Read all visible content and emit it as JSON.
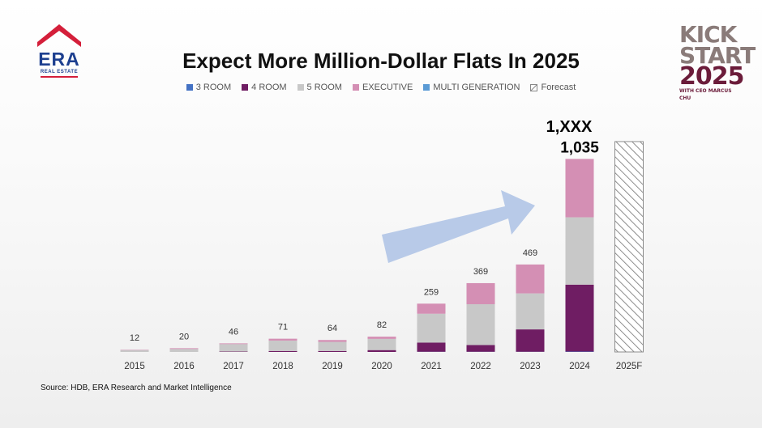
{
  "logo": {
    "name": "ERA",
    "sub": "REAL ESTATE"
  },
  "badge": {
    "line1": "KICK",
    "line2": "START",
    "line3": "2025",
    "line4": "WITH CEO MARCUS CHU"
  },
  "colors": {
    "3 ROOM": "#4472c4",
    "4 ROOM": "#6f1d63",
    "5 ROOM": "#c8c8c8",
    "EXECUTIVE": "#d48fb4",
    "MULTI GENERATION": "#5b9bd5",
    "arrow": "#b4c7e7"
  },
  "chart_data": {
    "type": "bar",
    "title": "Expect More Million-Dollar Flats In 2025",
    "categories": [
      "2015",
      "2016",
      "2017",
      "2018",
      "2019",
      "2020",
      "2021",
      "2022",
      "2023",
      "2024"
    ],
    "series": [
      {
        "name": "3 ROOM",
        "values": [
          0,
          0,
          0,
          0,
          0,
          0,
          1,
          1,
          1,
          2
        ]
      },
      {
        "name": "4 ROOM",
        "values": [
          0,
          0,
          2,
          5,
          5,
          10,
          49,
          36,
          120,
          359
        ]
      },
      {
        "name": "5 ROOM",
        "values": [
          10,
          16,
          40,
          56,
          49,
          60,
          155,
          219,
          193,
          361
        ]
      },
      {
        "name": "EXECUTIVE",
        "values": [
          2,
          4,
          4,
          10,
          10,
          12,
          54,
          113,
          155,
          313
        ]
      },
      {
        "name": "MULTI GENERATION",
        "values": [
          0,
          0,
          0,
          0,
          0,
          0,
          0,
          0,
          0,
          0
        ]
      }
    ],
    "totals": [
      "12",
      "20",
      "46",
      "71",
      "64",
      "82",
      "259",
      "369",
      "469",
      "1,035"
    ],
    "forecast": {
      "category": "2025F",
      "label": "1,XXX",
      "legend": "Forecast"
    },
    "legend_position": "top",
    "ylim": [
      0,
      1100
    ]
  },
  "source": "Source: HDB, ERA Research and Market Intelligence"
}
